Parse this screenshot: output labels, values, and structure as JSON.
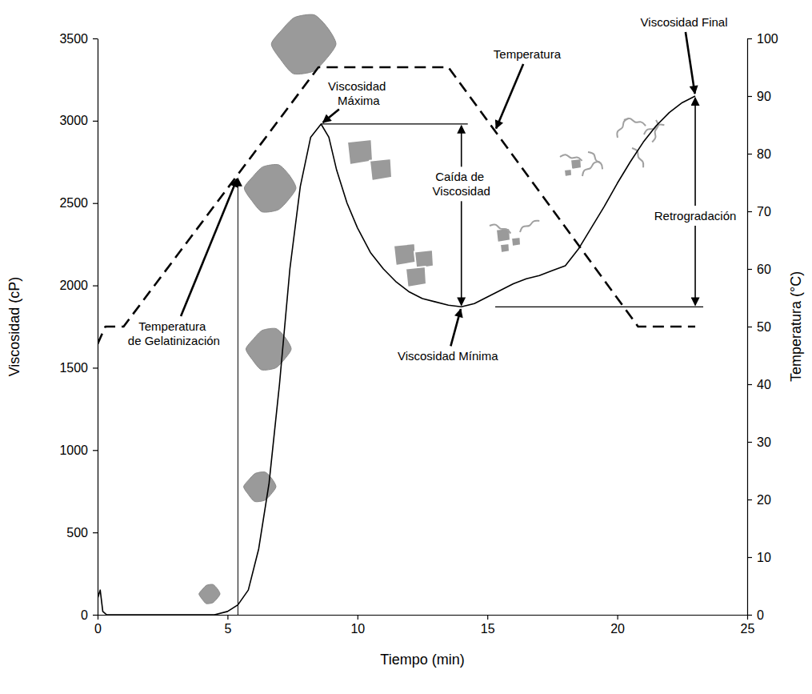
{
  "chart_data": {
    "type": "line",
    "xlabel": "Tiempo (min)",
    "ylabel": "Viscosidad (cP)",
    "y2label": "Temperatura (°C)",
    "xlim": [
      0,
      25
    ],
    "xticks": [
      0,
      5,
      10,
      15,
      20,
      25
    ],
    "ylim": [
      0,
      3500
    ],
    "yticks": [
      0,
      500,
      1000,
      1500,
      2000,
      2500,
      3000,
      3500
    ],
    "y2lim": [
      0,
      100
    ],
    "y2ticks": [
      0,
      10,
      20,
      30,
      40,
      50,
      60,
      70,
      80,
      90,
      100
    ],
    "grid": false,
    "series": [
      {
        "color": "#000000",
        "line_style": "solid",
        "x": [
          0,
          0.1,
          0.2,
          0.35,
          4.5,
          5.0,
          5.4,
          5.8,
          6.2,
          6.6,
          7.0,
          7.4,
          7.8,
          8.2,
          8.6,
          8.9,
          9.2,
          9.6,
          10,
          10.5,
          11,
          11.5,
          12,
          12.5,
          13,
          13.5,
          14,
          14.5,
          15,
          15.5,
          16,
          16.5,
          17,
          17.5,
          18,
          18.5,
          19,
          19.5,
          20,
          20.5,
          21,
          21.5,
          22,
          22.5,
          23
        ],
        "values": [
          100,
          150,
          20,
          0,
          0,
          20,
          60,
          150,
          400,
          800,
          1400,
          2100,
          2600,
          2900,
          2980,
          2900,
          2700,
          2500,
          2350,
          2200,
          2100,
          2020,
          1960,
          1920,
          1900,
          1880,
          1870,
          1890,
          1930,
          1970,
          2010,
          2040,
          2060,
          2090,
          2120,
          2220,
          2350,
          2480,
          2620,
          2750,
          2870,
          2970,
          3050,
          3110,
          3150
        ]
      },
      {
        "color": "#000000",
        "line_style": "dashed",
        "axis": "y2",
        "x": [
          0,
          0.3,
          1,
          8.5,
          13.5,
          20.8,
          23
        ],
        "values": [
          47,
          50,
          50,
          95,
          95,
          50,
          50
        ]
      }
    ],
    "annotations": [
      {
        "text": "Temperatura de Gelatinización",
        "x": 5.4,
        "y": 2660
      },
      {
        "text": "Viscosidad Máxima",
        "x": 8.6,
        "y": 2980
      },
      {
        "text": "Caída de Viscosidad",
        "x": 14,
        "y": [
          1870,
          2980
        ]
      },
      {
        "text": "Viscosidad Mínima",
        "x": 14,
        "y": 1870
      },
      {
        "text": "Temperatura",
        "x": 15.3,
        "y": 2940
      },
      {
        "text": "Viscosidad Final",
        "x": 23,
        "y": 3150
      },
      {
        "text": "Retrogradación",
        "x": 23,
        "y": [
          1870,
          3150
        ]
      }
    ]
  }
}
